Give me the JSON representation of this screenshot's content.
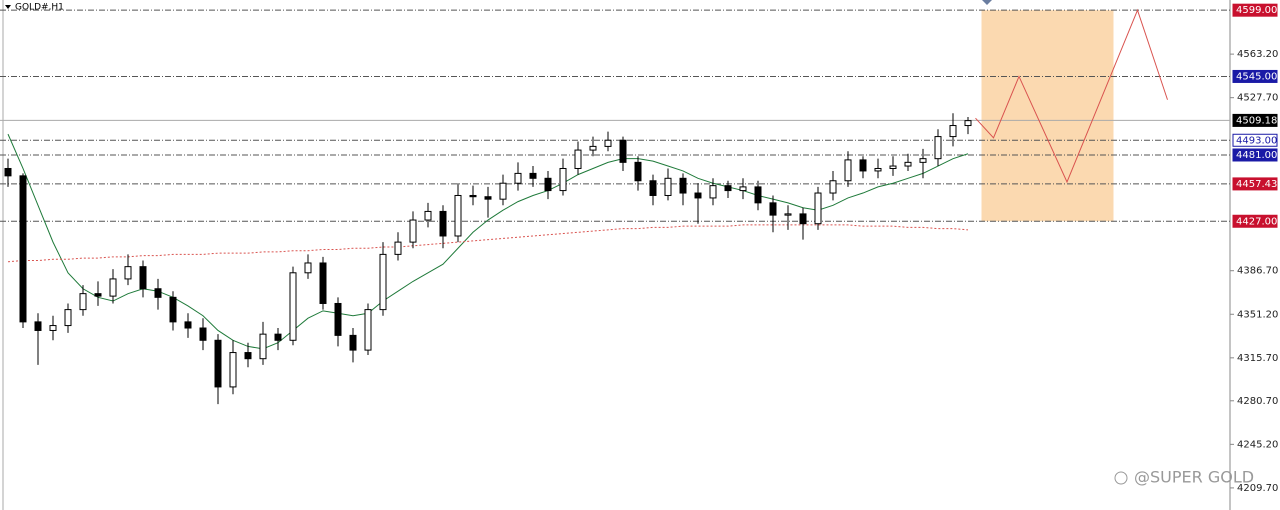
{
  "chart_data": {
    "type": "candlestick",
    "title": "GOLD#,H1",
    "watermark": "@SUPER GOLD",
    "ylim": [
      4191.7,
      4607.3
    ],
    "yticks": [
      {
        "value": 4563.2,
        "label": "4563.20"
      },
      {
        "value": 4527.7,
        "label": "4527.70"
      },
      {
        "value": 4386.7,
        "label": "4386.70"
      },
      {
        "value": 4351.2,
        "label": "4351.20"
      },
      {
        "value": 4315.7,
        "label": "4315.70"
      },
      {
        "value": 4280.7,
        "label": "4280.70"
      },
      {
        "value": 4245.2,
        "label": "4245.20"
      },
      {
        "value": 4209.7,
        "label": "4209.70"
      }
    ],
    "candles": [
      [
        4470,
        4478,
        4455,
        4464
      ],
      [
        4464,
        4466,
        4340,
        4345
      ],
      [
        4345,
        4352,
        4310,
        4338
      ],
      [
        4338,
        4350,
        4330,
        4342
      ],
      [
        4342,
        4360,
        4336,
        4355
      ],
      [
        4355,
        4375,
        4350,
        4368
      ],
      [
        4368,
        4378,
        4358,
        4366
      ],
      [
        4366,
        4388,
        4360,
        4380
      ],
      [
        4380,
        4400,
        4375,
        4390
      ],
      [
        4390,
        4395,
        4365,
        4372
      ],
      [
        4372,
        4380,
        4355,
        4365
      ],
      [
        4365,
        4370,
        4338,
        4345
      ],
      [
        4345,
        4352,
        4332,
        4340
      ],
      [
        4340,
        4348,
        4322,
        4330
      ],
      [
        4330,
        4335,
        4278,
        4292
      ],
      [
        4292,
        4330,
        4286,
        4320
      ],
      [
        4320,
        4328,
        4308,
        4315
      ],
      [
        4315,
        4345,
        4310,
        4335
      ],
      [
        4335,
        4340,
        4322,
        4330
      ],
      [
        4330,
        4390,
        4326,
        4385
      ],
      [
        4385,
        4400,
        4380,
        4393
      ],
      [
        4393,
        4398,
        4355,
        4360
      ],
      [
        4360,
        4365,
        4325,
        4334
      ],
      [
        4334,
        4340,
        4312,
        4322
      ],
      [
        4322,
        4360,
        4318,
        4355
      ],
      [
        4355,
        4410,
        4350,
        4400
      ],
      [
        4400,
        4418,
        4395,
        4410
      ],
      [
        4410,
        4435,
        4405,
        4428
      ],
      [
        4428,
        4442,
        4422,
        4435
      ],
      [
        4435,
        4440,
        4405,
        4415
      ],
      [
        4415,
        4458,
        4410,
        4448
      ],
      [
        4448,
        4456,
        4440,
        4447
      ],
      [
        4447,
        4455,
        4430,
        4445
      ],
      [
        4445,
        4465,
        4440,
        4458
      ],
      [
        4458,
        4475,
        4452,
        4466
      ],
      [
        4466,
        4472,
        4455,
        4462
      ],
      [
        4462,
        4468,
        4445,
        4452
      ],
      [
        4452,
        4478,
        4448,
        4470
      ],
      [
        4470,
        4492,
        4465,
        4485
      ],
      [
        4485,
        4496,
        4480,
        4488
      ],
      [
        4488,
        4500,
        4484,
        4493
      ],
      [
        4493,
        4496,
        4468,
        4475
      ],
      [
        4475,
        4480,
        4452,
        4460
      ],
      [
        4460,
        4465,
        4440,
        4448
      ],
      [
        4448,
        4470,
        4444,
        4462
      ],
      [
        4462,
        4466,
        4440,
        4450
      ],
      [
        4450,
        4458,
        4425,
        4446
      ],
      [
        4446,
        4462,
        4440,
        4456
      ],
      [
        4456,
        4460,
        4446,
        4452
      ],
      [
        4452,
        4462,
        4445,
        4455
      ],
      [
        4455,
        4460,
        4436,
        4442
      ],
      [
        4442,
        4448,
        4418,
        4432
      ],
      [
        4432,
        4440,
        4420,
        4433
      ],
      [
        4433,
        4438,
        4412,
        4425
      ],
      [
        4425,
        4455,
        4420,
        4450
      ],
      [
        4450,
        4468,
        4444,
        4460
      ],
      [
        4460,
        4484,
        4455,
        4477
      ],
      [
        4477,
        4480,
        4462,
        4468
      ],
      [
        4468,
        4478,
        4462,
        4470
      ],
      [
        4470,
        4480,
        4464,
        4472
      ],
      [
        4472,
        4482,
        4468,
        4475
      ],
      [
        4475,
        4486,
        4462,
        4478
      ],
      [
        4478,
        4502,
        4472,
        4496
      ],
      [
        4496,
        4515,
        4488,
        4505
      ],
      [
        4505,
        4512,
        4498,
        4509
      ]
    ],
    "series": [
      {
        "color": "#1f7a3a",
        "style": "solid",
        "values": [
          4498,
          4470,
          4440,
          4410,
          4385,
          4372,
          4365,
          4362,
          4368,
          4372,
          4370,
          4365,
          4358,
          4350,
          4338,
          4330,
          4325,
          4323,
          4328,
          4338,
          4348,
          4354,
          4352,
          4350,
          4352,
          4362,
          4370,
          4378,
          4385,
          4392,
          4405,
          4418,
          4428,
          4436,
          4443,
          4448,
          4452,
          4458,
          4465,
          4470,
          4475,
          4478,
          4478,
          4476,
          4472,
          4468,
          4462,
          4458,
          4455,
          4452,
          4448,
          4445,
          4442,
          4438,
          4436,
          4440,
          4446,
          4450,
          4455,
          4458,
          4462,
          4466,
          4472,
          4478,
          4482
        ]
      },
      {
        "color": "#d9534f",
        "style": "dotted",
        "values": [
          4394,
          4395,
          4395,
          4396,
          4396,
          4397,
          4397,
          4398,
          4398,
          4399,
          4399,
          4400,
          4400,
          4400,
          4401,
          4401,
          4401,
          4402,
          4402,
          4403,
          4403,
          4404,
          4404,
          4405,
          4405,
          4406,
          4406,
          4407,
          4408,
          4409,
          4410,
          4411,
          4412,
          4413,
          4414,
          4415,
          4416,
          4417,
          4418,
          4419,
          4420,
          4421,
          4421,
          4422,
          4422,
          4423,
          4423,
          4423,
          4423,
          4424,
          4424,
          4424,
          4424,
          4424,
          4424,
          4424,
          4424,
          4423,
          4423,
          4423,
          4422,
          4422,
          4421,
          4421,
          4420
        ]
      }
    ],
    "levels": [
      {
        "value": 4599,
        "label": "4599.00",
        "color": "#c8102e",
        "text_color": "#ffffff"
      },
      {
        "value": 4545,
        "label": "4545.00",
        "color": "#1a1aa6",
        "text_color": "#ffffff"
      },
      {
        "value": 4509.18,
        "label": "4509.18",
        "color": "#000000",
        "text_color": "#ffffff"
      },
      {
        "value": 4493,
        "label": "4493.00",
        "color": "#ffffff",
        "text_color": "#1a1aa6"
      },
      {
        "value": 4481,
        "label": "4481.00",
        "color": "#1a1aa6",
        "text_color": "#ffffff"
      },
      {
        "value": 4457.43,
        "label": "4457.43",
        "color": "#c8102e",
        "text_color": "#ffffff"
      },
      {
        "value": 4427,
        "label": "4427.00",
        "color": "#c8102e",
        "text_color": "#ffffff"
      }
    ],
    "zone": {
      "x": [
        64.9,
        73.7
      ],
      "range": [
        4427,
        4599
      ],
      "color": "#fbd9b0"
    },
    "projection": {
      "x": [
        64.5,
        65.7,
        67.4,
        70.6,
        75.3,
        77.3
      ],
      "values": [
        4511,
        4495,
        4545,
        4459,
        4599,
        4526
      ],
      "color": "#d9534f"
    }
  }
}
